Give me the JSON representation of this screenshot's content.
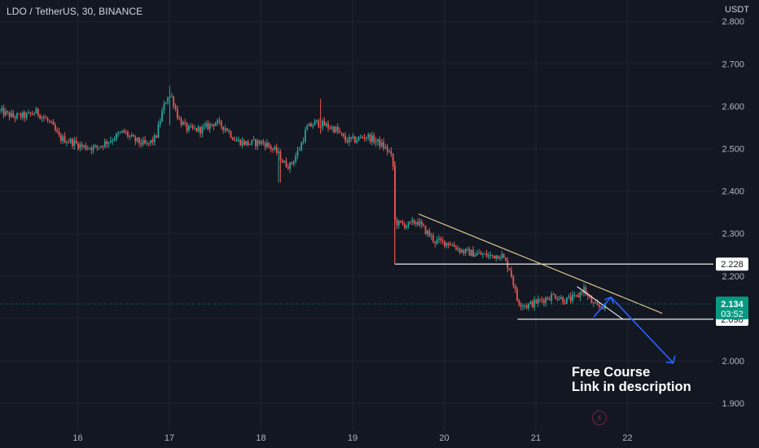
{
  "header": {
    "symbol_title": "LDO / TetherUS, 30, BINANCE",
    "currency": "USDT"
  },
  "annotation": {
    "line1": "Free Course",
    "line2": "Link in description"
  },
  "logo_icon": "lightning-bolt-icon",
  "colors": {
    "background": "#131722",
    "grid": "#1f2430",
    "up_candle": "#26a69a",
    "down_candle": "#ef5350",
    "trendline": "#d9c389",
    "support_lines": "#ffffff",
    "projection_arrow": "#2962ff",
    "current_price": "#089981"
  },
  "chart_data": {
    "type": "candlestick",
    "timeframe": "30",
    "exchange": "BINANCE",
    "y_axis": {
      "ylim": [
        1.85,
        2.82
      ],
      "ticks": [
        "1.900",
        "2.000",
        "2.100",
        "2.200",
        "2.300",
        "2.400",
        "2.500",
        "2.600",
        "2.700",
        "2.800"
      ],
      "side": "right"
    },
    "x_axis": {
      "ticks": [
        "16",
        "17",
        "18",
        "19",
        "20",
        "21",
        "22"
      ],
      "tick_days": [
        16,
        17,
        18,
        19,
        20,
        21,
        22
      ],
      "xlim": [
        15.15,
        22.95
      ]
    },
    "grid": true,
    "price_path": [
      [
        15.15,
        2.588
      ],
      [
        15.3,
        2.575
      ],
      [
        15.45,
        2.578
      ],
      [
        15.55,
        2.587
      ],
      [
        15.7,
        2.56
      ],
      [
        15.8,
        2.525
      ],
      [
        15.95,
        2.515
      ],
      [
        16.05,
        2.505
      ],
      [
        16.2,
        2.502
      ],
      [
        16.35,
        2.52
      ],
      [
        16.5,
        2.54
      ],
      [
        16.6,
        2.522
      ],
      [
        16.75,
        2.508
      ],
      [
        16.85,
        2.525
      ],
      [
        16.92,
        2.585
      ],
      [
        16.98,
        2.625
      ],
      [
        17.03,
        2.62
      ],
      [
        17.1,
        2.57
      ],
      [
        17.2,
        2.545
      ],
      [
        17.35,
        2.545
      ],
      [
        17.5,
        2.562
      ],
      [
        17.62,
        2.548
      ],
      [
        17.72,
        2.52
      ],
      [
        17.85,
        2.512
      ],
      [
        17.98,
        2.515
      ],
      [
        18.05,
        2.512
      ],
      [
        18.18,
        2.49
      ],
      [
        18.25,
        2.465
      ],
      [
        18.32,
        2.46
      ],
      [
        18.42,
        2.5
      ],
      [
        18.5,
        2.548
      ],
      [
        18.6,
        2.562
      ],
      [
        18.7,
        2.555
      ],
      [
        18.82,
        2.545
      ],
      [
        18.92,
        2.52
      ],
      [
        19.02,
        2.52
      ],
      [
        19.15,
        2.53
      ],
      [
        19.3,
        2.512
      ],
      [
        19.4,
        2.492
      ],
      [
        19.44,
        2.47
      ],
      [
        19.46,
        2.33
      ],
      [
        19.5,
        2.323
      ],
      [
        19.62,
        2.32
      ],
      [
        19.7,
        2.33
      ],
      [
        19.8,
        2.305
      ],
      [
        19.9,
        2.282
      ],
      [
        20.05,
        2.278
      ],
      [
        20.2,
        2.258
      ],
      [
        20.35,
        2.252
      ],
      [
        20.5,
        2.247
      ],
      [
        20.62,
        2.25
      ],
      [
        20.72,
        2.215
      ],
      [
        20.8,
        2.14
      ],
      [
        20.9,
        2.13
      ],
      [
        21.05,
        2.142
      ],
      [
        21.2,
        2.155
      ],
      [
        21.32,
        2.142
      ],
      [
        21.45,
        2.15
      ],
      [
        21.52,
        2.172
      ],
      [
        21.58,
        2.145
      ],
      [
        21.66,
        2.125
      ],
      [
        21.72,
        2.128
      ],
      [
        21.76,
        2.134
      ]
    ],
    "spikes": [
      {
        "day": 17.0,
        "high": 2.648,
        "low": 2.555
      },
      {
        "day": 18.65,
        "high": 2.617,
        "low": 2.535
      },
      {
        "day": 18.2,
        "high": 2.49,
        "low": 2.42
      }
    ],
    "current_price": {
      "label": "2.134",
      "value": 2.134,
      "countdown": "03:52"
    },
    "drawings": {
      "horizontal_levels": [
        {
          "label": "2.228",
          "value": 2.228,
          "from_day": 19.46
        },
        {
          "label": "2.098",
          "value": 2.098,
          "from_day": 20.8
        }
      ],
      "descending_trendline": {
        "start": [
          19.72,
          2.346
        ],
        "end": [
          22.38,
          2.112
        ]
      },
      "small_wedge_upper": [
        [
          21.45,
          2.175
        ],
        [
          21.95,
          2.098
        ]
      ],
      "projection_arrow": [
        [
          21.63,
          2.103
        ],
        [
          21.82,
          2.15
        ],
        [
          22.5,
          1.995
        ]
      ]
    }
  }
}
